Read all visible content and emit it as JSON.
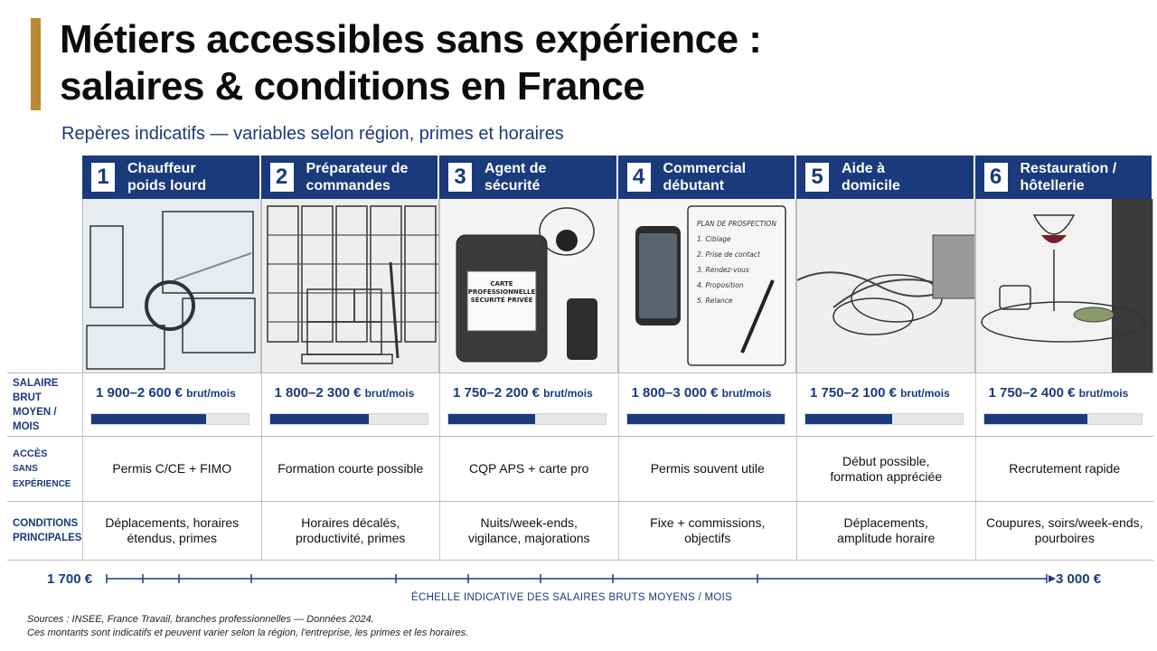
{
  "title": {
    "line1": "Métiers accessibles sans expérience :",
    "line2": "salaires & conditions en France"
  },
  "subtitle": "Repères indicatifs — variables selon région, primes et horaires",
  "row_labels": {
    "salary": [
      "SALAIRE BRUT",
      "MOYEN / MOIS"
    ],
    "access": [
      "ACCÈS",
      "SANS EXPÉRIENCE"
    ],
    "conditions": [
      "CONDITIONS",
      "PRINCIPALES"
    ]
  },
  "jobs": [
    {
      "num": "1",
      "title": [
        "Chauffeur",
        "poids lourd"
      ],
      "icon": "truck-cab-icon",
      "salary": "1 900–2 600 €",
      "unit": "brut/mois",
      "bar_fraction": 0.73,
      "access": [
        "Permis C/CE + FIMO"
      ],
      "conditions": [
        "Déplacements, horaires",
        "étendus, primes"
      ]
    },
    {
      "num": "2",
      "title": [
        "Préparateur de",
        "commandes"
      ],
      "icon": "warehouse-pallet-icon",
      "salary": "1 800–2 300 €",
      "unit": "brut/mois",
      "bar_fraction": 0.63,
      "access": [
        "Formation courte possible"
      ],
      "conditions": [
        "Horaires décalés,",
        "productivité, primes"
      ]
    },
    {
      "num": "3",
      "title": [
        "Agent de",
        "sécurité"
      ],
      "icon": "security-badge-icon",
      "salary": "1 750–2 200 €",
      "unit": "brut/mois",
      "bar_fraction": 0.55,
      "badge": [
        "CARTE",
        "PROFESSIONNELLE",
        "SÉCURITÉ PRIVÉE"
      ],
      "access": [
        "CQP APS + carte pro"
      ],
      "conditions": [
        "Nuits/week-ends,",
        "vigilance, majorations"
      ]
    },
    {
      "num": "4",
      "title": [
        "Commercial",
        "débutant"
      ],
      "icon": "notebook-phone-icon",
      "salary": "1 800–3 000 €",
      "unit": "brut/mois",
      "bar_fraction": 1.0,
      "notebook": [
        "PLAN DE PROSPECTION",
        "1. Ciblage",
        "2. Prise de contact",
        "3. Rendez-vous",
        "4. Proposition",
        "5. Relance"
      ],
      "access": [
        "Permis souvent utile"
      ],
      "conditions": [
        "Fixe + commissions,",
        "objectifs"
      ]
    },
    {
      "num": "5",
      "title": [
        "Aide à",
        "domicile"
      ],
      "icon": "helping-hands-icon",
      "salary": "1 750–2 100 €",
      "unit": "brut/mois",
      "bar_fraction": 0.55,
      "access": [
        "Début possible,",
        "formation appréciée"
      ],
      "conditions": [
        "Déplacements,",
        "amplitude horaire"
      ]
    },
    {
      "num": "6",
      "title": [
        "Restauration /",
        "hôtellerie"
      ],
      "icon": "tray-wine-icon",
      "salary": "1 750–2 400 €",
      "unit": "brut/mois",
      "bar_fraction": 0.66,
      "access": [
        "Recrutement rapide"
      ],
      "conditions": [
        "Coupures, soirs/week-ends,",
        "pourboires"
      ]
    }
  ],
  "scale": {
    "min": "1 700 €",
    "max": "3 000 €",
    "caption": "ÉCHELLE INDICATIVE DES SALAIRES BRUTS MOYENS / MOIS",
    "ticks": [
      1700,
      1750,
      1800,
      1900,
      2100,
      2200,
      2300,
      2400,
      2600,
      3000
    ]
  },
  "sources": {
    "label": "Sources :",
    "text": "INSEE, France Travail, branches professionnelles — Données 2024.",
    "note": "Ces montants sont indicatifs et peuvent varier selon la région, l'entreprise, les primes et les horaires."
  },
  "colors": {
    "navy": "#1a3a7c",
    "gold": "#b98a32"
  }
}
